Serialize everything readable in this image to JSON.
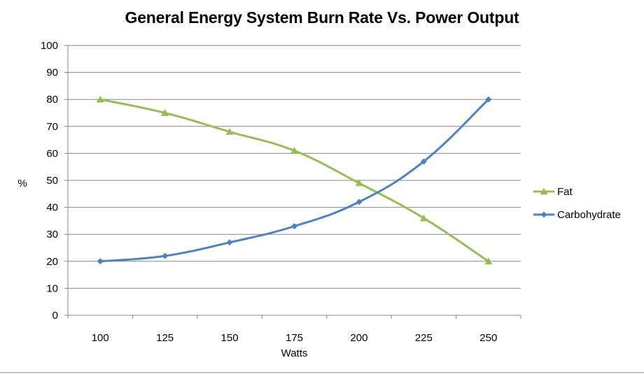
{
  "chart_data": {
    "type": "line",
    "title": "General Energy System Burn Rate Vs. Power Output",
    "xlabel": "Watts",
    "ylabel": "%",
    "categories": [
      "100",
      "125",
      "150",
      "175",
      "200",
      "225",
      "250"
    ],
    "ylim": [
      0,
      100
    ],
    "yticks": [
      "0",
      "10",
      "20",
      "30",
      "40",
      "50",
      "60",
      "70",
      "80",
      "90",
      "100"
    ],
    "grid": true,
    "legend_position": "right",
    "series": [
      {
        "name": "Fat",
        "values": [
          80,
          75,
          68,
          61,
          49,
          36,
          20
        ],
        "color": "#9BBB59",
        "marker": "triangle"
      },
      {
        "name": "Carbohydrate",
        "values": [
          20,
          22,
          27,
          33,
          42,
          57,
          80
        ],
        "color": "#4F81BD",
        "marker": "diamond"
      }
    ]
  }
}
